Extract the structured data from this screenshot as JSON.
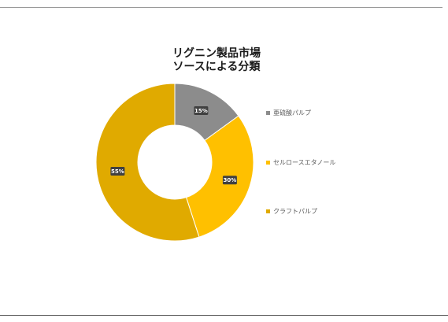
{
  "chart_data": {
    "type": "pie",
    "title": [
      "リグニン製品市場",
      "ソースによる分類"
    ],
    "categories": [
      "亜硫酸パルプ",
      "セルロースエタノール",
      "クラフトパルプ"
    ],
    "values": [
      15,
      30,
      55
    ],
    "labels": [
      "15%",
      "30%",
      "55%"
    ],
    "colors": [
      "#8c8c8c",
      "#ffc000",
      "#e0aa00"
    ],
    "donut": true,
    "legend": "right"
  }
}
